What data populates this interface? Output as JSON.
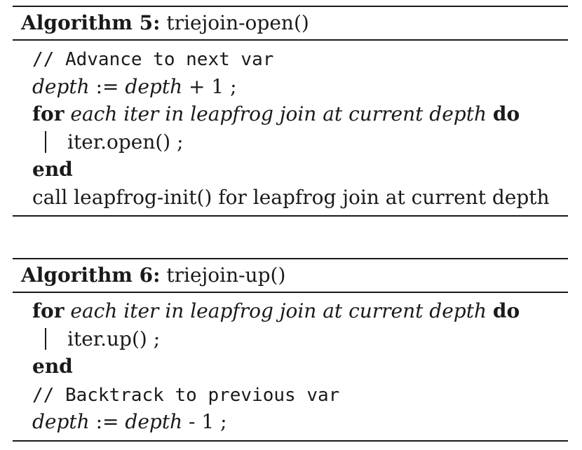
{
  "algorithms": [
    {
      "label": "Algorithm 5:",
      "name": "triejoin-open()",
      "lines": {
        "comment": "// Advance to next var",
        "depth_var": "depth",
        "assign": ":=",
        "depth_var2": "depth",
        "plus_one": "+ 1 ;",
        "for_kw": "for",
        "for_cond": "each iter in leapfrog join at current depth",
        "do_kw": "do",
        "body_stmt": "iter.open() ;",
        "end_kw": "end",
        "call_stmt": "call leapfrog-init() for leapfrog join at current depth"
      }
    },
    {
      "label": "Algorithm 6:",
      "name": "triejoin-up()",
      "lines": {
        "for_kw": "for",
        "for_cond": "each iter in leapfrog join at current depth",
        "do_kw": "do",
        "body_stmt": "iter.up() ;",
        "end_kw": "end",
        "comment": "// Backtrack to previous var",
        "depth_var": "depth",
        "assign": ":=",
        "depth_var2": "depth",
        "minus_one": "- 1 ;"
      }
    }
  ]
}
